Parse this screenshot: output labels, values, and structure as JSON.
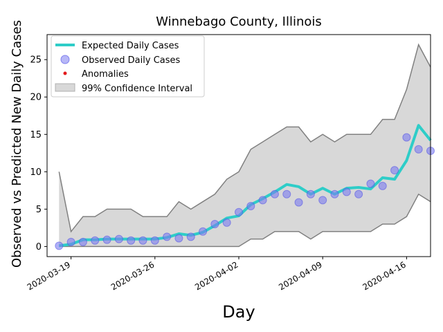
{
  "chart_data": {
    "type": "line",
    "title": "Winnebago County, Illinois",
    "xlabel": "Day",
    "ylabel": "Observed vs Predicted New Daily Cases",
    "xlim": [
      "2020-03-17",
      "2020-04-18"
    ],
    "ylim": [
      -1.35,
      28.35
    ],
    "x_ticks": [
      "2020-03-19",
      "2020-03-26",
      "2020-04-02",
      "2020-04-09",
      "2020-04-16"
    ],
    "y_ticks": [
      0,
      5,
      10,
      15,
      20,
      25
    ],
    "grid": false,
    "legend_position": "upper-left",
    "dates": [
      "2020-03-18",
      "2020-03-19",
      "2020-03-20",
      "2020-03-21",
      "2020-03-22",
      "2020-03-23",
      "2020-03-24",
      "2020-03-25",
      "2020-03-26",
      "2020-03-27",
      "2020-03-28",
      "2020-03-29",
      "2020-03-30",
      "2020-03-31",
      "2020-04-01",
      "2020-04-02",
      "2020-04-03",
      "2020-04-04",
      "2020-04-05",
      "2020-04-06",
      "2020-04-07",
      "2020-04-08",
      "2020-04-09",
      "2020-04-10",
      "2020-04-11",
      "2020-04-12",
      "2020-04-13",
      "2020-04-14",
      "2020-04-15",
      "2020-04-16",
      "2020-04-17",
      "2020-04-18"
    ],
    "series": [
      {
        "name": "Expected Daily Cases",
        "kind": "line",
        "color": "#2ecdc8",
        "values": [
          0.1,
          0.3,
          0.9,
          0.9,
          1.0,
          1.0,
          1.0,
          1.0,
          1.0,
          1.2,
          1.7,
          1.5,
          1.9,
          2.8,
          3.8,
          4.1,
          5.6,
          6.4,
          7.3,
          8.3,
          8.0,
          7.0,
          7.8,
          7.0,
          7.8,
          7.9,
          7.7,
          9.2,
          9.0,
          11.5,
          16.2,
          14.2
        ]
      },
      {
        "name": "Observed Daily Cases",
        "kind": "scatter",
        "color": "#7b7bf0",
        "values": [
          0.1,
          0.6,
          0.6,
          0.8,
          0.9,
          1.0,
          0.8,
          0.8,
          0.8,
          1.3,
          1.1,
          1.3,
          2.0,
          3.0,
          3.2,
          4.6,
          5.4,
          6.2,
          7.0,
          7.0,
          5.9,
          7.0,
          6.2,
          7.0,
          7.3,
          7.0,
          8.4,
          8.1,
          10.2,
          14.6,
          13.0,
          12.8
        ]
      },
      {
        "name": "Anomalies",
        "kind": "scatter",
        "color": "#e31a1c",
        "values": []
      },
      {
        "name": "99% Confidence Interval",
        "kind": "band",
        "color": "#d8d8d8",
        "edge_color": "#808080",
        "upper": [
          10,
          2,
          4,
          4,
          5,
          5,
          5,
          4,
          4,
          4,
          6,
          5,
          6,
          7,
          9,
          10,
          13,
          14,
          15,
          16,
          16,
          14,
          15,
          14,
          15,
          15,
          15,
          17,
          17,
          21,
          27,
          24
        ],
        "lower": [
          0,
          0,
          0,
          0,
          0,
          0,
          0,
          0,
          0,
          0,
          0,
          0,
          0,
          0,
          0,
          0,
          1,
          1,
          2,
          2,
          2,
          1,
          2,
          2,
          2,
          2,
          2,
          3,
          3,
          4,
          7,
          6
        ]
      }
    ]
  }
}
